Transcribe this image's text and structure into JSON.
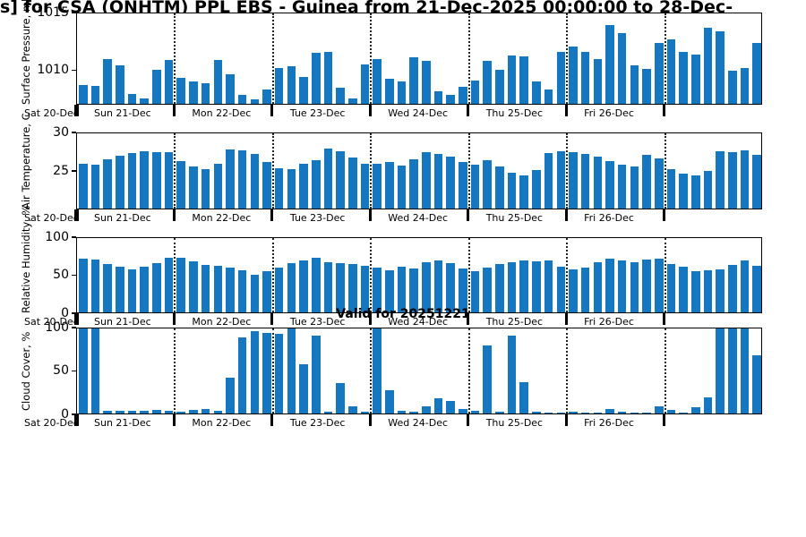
{
  "title": "s] for CSA (ONHTM) PPL EBS  - Guinea from 21-Dec-2025 00:00:00 to 28-Dec-",
  "annotations": {
    "valid": "Valid for 20251221"
  },
  "colors": {
    "bar": "#1577c0",
    "grid": "#000000",
    "text": "#000000"
  },
  "axis": {
    "pre_label": "Sat 20-Dec",
    "day_labels": [
      "Sun 21-Dec",
      "Mon 22-Dec",
      "Tue 23-Dec",
      "Wed 24-Dec",
      "Thu 25-Dec",
      "Fri 26-Dec",
      ""
    ],
    "bars_per_day": 8,
    "interval_hours": 3
  },
  "chart_data": [
    {
      "type": "bar",
      "ylabel": "Surface Pressure, mb",
      "ylim": [
        1007,
        1015
      ],
      "yticks": [
        1015,
        1010
      ],
      "values": [
        1008.7,
        1008.6,
        1011.0,
        1010.4,
        1007.9,
        1007.5,
        1010.0,
        1010.9,
        1009.3,
        1009.0,
        1008.8,
        1010.9,
        1009.6,
        1007.8,
        1007.4,
        1008.3,
        1010.2,
        1010.3,
        1009.4,
        1011.5,
        1011.6,
        1008.4,
        1007.5,
        1010.5,
        1011.0,
        1009.2,
        1009.0,
        1011.1,
        1010.8,
        1008.1,
        1007.8,
        1008.5,
        1009.1,
        1010.8,
        1010.0,
        1011.3,
        1011.2,
        1009.0,
        1008.3,
        1011.6,
        1012.1,
        1011.6,
        1011.0,
        1014.0,
        1013.3,
        1010.4,
        1010.1,
        1012.4,
        1012.7,
        1011.6,
        1011.4,
        1013.7,
        1013.4,
        1009.9,
        1010.2,
        1012.4
      ]
    },
    {
      "type": "bar",
      "ylabel": "Air Temperature, C",
      "ylim": [
        20,
        30
      ],
      "yticks": [
        30,
        25
      ],
      "values": [
        26.0,
        25.8,
        26.5,
        27.0,
        27.4,
        27.6,
        27.5,
        27.5,
        26.3,
        25.6,
        25.3,
        26.0,
        27.9,
        27.7,
        27.3,
        26.2,
        25.4,
        25.2,
        25.9,
        26.4,
        28.0,
        27.6,
        26.8,
        26.0,
        25.9,
        26.2,
        25.7,
        26.6,
        27.5,
        27.3,
        26.9,
        26.2,
        25.8,
        26.4,
        25.6,
        24.8,
        24.4,
        25.1,
        27.4,
        27.6,
        27.5,
        27.3,
        26.9,
        26.3,
        25.8,
        25.6,
        27.1,
        26.7,
        25.3,
        24.6,
        24.4,
        25.0,
        27.6,
        27.5,
        27.7,
        27.2
      ]
    },
    {
      "type": "bar",
      "ylabel": "Relative Humidity, %",
      "ylim": [
        0,
        100
      ],
      "yticks": [
        100,
        50,
        0
      ],
      "values": [
        72,
        71,
        65,
        61,
        58,
        62,
        66,
        73,
        74,
        69,
        64,
        63,
        60,
        57,
        51,
        56,
        60,
        66,
        70,
        73,
        68,
        66,
        65,
        63,
        60,
        57,
        62,
        59,
        67,
        70,
        66,
        59,
        55,
        60,
        65,
        68,
        70,
        69,
        70,
        62,
        58,
        60,
        68,
        72,
        70,
        68,
        71,
        72,
        65,
        61,
        55,
        57,
        58,
        64,
        70,
        63
      ]
    },
    {
      "type": "bar",
      "ylabel": "Cloud Cover, %",
      "ylim": [
        0,
        100
      ],
      "yticks": [
        100,
        50,
        0
      ],
      "values": [
        100,
        100,
        3,
        3,
        3,
        3,
        4,
        3,
        2,
        4,
        5,
        3,
        42,
        90,
        97,
        95,
        94,
        100,
        58,
        92,
        2,
        36,
        8,
        2,
        100,
        27,
        3,
        2,
        8,
        18,
        15,
        5,
        3,
        80,
        2,
        92,
        37,
        2,
        1,
        1,
        2,
        1,
        1,
        5,
        2,
        1,
        1,
        8,
        4,
        1,
        7,
        19,
        100,
        100,
        100,
        68
      ]
    }
  ]
}
